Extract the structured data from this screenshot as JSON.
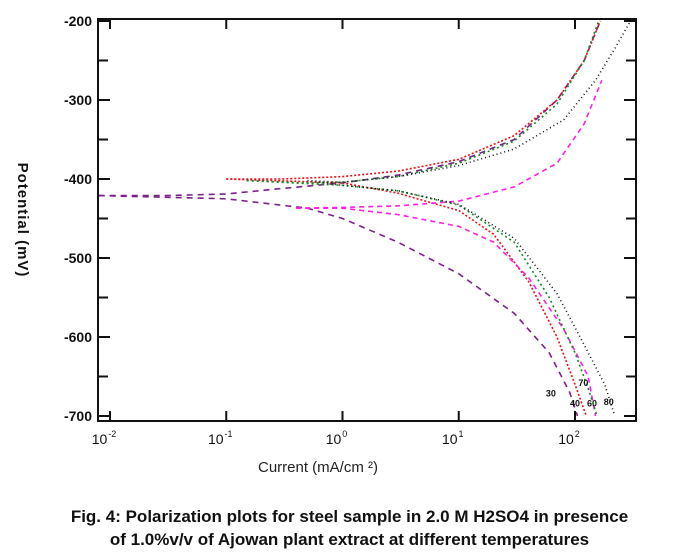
{
  "chart_data": {
    "type": "line",
    "title": "",
    "xlabel": "Current (mA/cm ²)",
    "ylabel": "Potential (mV)",
    "xscale": "log",
    "xlim": [
      0.008,
      300
    ],
    "ylim": [
      -700,
      -200
    ],
    "x_ticks": [
      {
        "base": "10",
        "exp": "-2",
        "value": 0.01
      },
      {
        "base": "10",
        "exp": "-1",
        "value": 0.1
      },
      {
        "base": "10",
        "exp": "0",
        "value": 1
      },
      {
        "base": "10",
        "exp": "1",
        "value": 10
      },
      {
        "base": "10",
        "exp": "2",
        "value": 100
      }
    ],
    "y_ticks": [
      -200,
      -300,
      -400,
      -500,
      -600,
      -700
    ],
    "y_minor_ticks": [
      -250,
      -350,
      -450,
      -550,
      -650
    ],
    "grid": false,
    "legend": "none",
    "series": [
      {
        "name": "30",
        "color": "#7b1f8c",
        "anodic": [
          [
            0.008,
            -421
          ],
          [
            0.03,
            -421
          ],
          [
            0.1,
            -419
          ],
          [
            0.3,
            -412
          ],
          [
            1,
            -405
          ],
          [
            3,
            -395
          ],
          [
            10,
            -378
          ],
          [
            30,
            -350
          ],
          [
            70,
            -300
          ],
          [
            120,
            -250
          ],
          [
            160,
            -205
          ]
        ],
        "cathodic": [
          [
            0.008,
            -421
          ],
          [
            0.1,
            -425
          ],
          [
            0.5,
            -437
          ],
          [
            1,
            -450
          ],
          [
            3,
            -480
          ],
          [
            10,
            -520
          ],
          [
            30,
            -570
          ],
          [
            60,
            -620
          ],
          [
            90,
            -670
          ],
          [
            105,
            -700
          ]
        ],
        "label_at": [
          62,
          -675
        ]
      },
      {
        "name": "40",
        "color": "#e8101a",
        "anodic": [
          [
            0.1,
            -400
          ],
          [
            0.3,
            -400
          ],
          [
            1,
            -397
          ],
          [
            3,
            -390
          ],
          [
            10,
            -375
          ],
          [
            30,
            -345
          ],
          [
            70,
            -300
          ],
          [
            120,
            -250
          ],
          [
            165,
            -200
          ]
        ],
        "cathodic": [
          [
            0.1,
            -400
          ],
          [
            1,
            -405
          ],
          [
            3,
            -418
          ],
          [
            10,
            -440
          ],
          [
            20,
            -470
          ],
          [
            40,
            -530
          ],
          [
            70,
            -600
          ],
          [
            100,
            -660
          ],
          [
            125,
            -700
          ]
        ],
        "label_at": [
          100,
          -688
        ]
      },
      {
        "name": "60",
        "color": "#ff1ee6",
        "anodic": [
          [
            0.4,
            -437
          ],
          [
            1,
            -436
          ],
          [
            3,
            -434
          ],
          [
            10,
            -428
          ],
          [
            30,
            -410
          ],
          [
            70,
            -380
          ],
          [
            120,
            -330
          ],
          [
            170,
            -275
          ]
        ],
        "cathodic": [
          [
            0.4,
            -437
          ],
          [
            1,
            -437
          ],
          [
            3,
            -445
          ],
          [
            10,
            -460
          ],
          [
            20,
            -480
          ],
          [
            40,
            -525
          ],
          [
            80,
            -590
          ],
          [
            130,
            -650
          ],
          [
            150,
            -700
          ]
        ],
        "label_at": [
          140,
          -688
        ]
      },
      {
        "name": "70",
        "color": "#138a1e",
        "anodic": [
          [
            0.15,
            -402
          ],
          [
            0.5,
            -405
          ],
          [
            1,
            -404
          ],
          [
            3,
            -397
          ],
          [
            10,
            -380
          ],
          [
            30,
            -352
          ],
          [
            70,
            -305
          ],
          [
            120,
            -250
          ],
          [
            160,
            -200
          ]
        ],
        "cathodic": [
          [
            0.15,
            -402
          ],
          [
            1,
            -408
          ],
          [
            3,
            -415
          ],
          [
            10,
            -433
          ],
          [
            30,
            -480
          ],
          [
            60,
            -550
          ],
          [
            100,
            -620
          ],
          [
            130,
            -665
          ],
          [
            155,
            -700
          ]
        ],
        "label_at": [
          118,
          -662
        ]
      },
      {
        "name": "80",
        "color": "#111111",
        "anodic": [
          [
            0.5,
            -402
          ],
          [
            1,
            -404
          ],
          [
            3,
            -397
          ],
          [
            10,
            -383
          ],
          [
            30,
            -362
          ],
          [
            80,
            -325
          ],
          [
            150,
            -275
          ],
          [
            220,
            -235
          ],
          [
            300,
            -200
          ]
        ],
        "cathodic": [
          [
            0.5,
            -402
          ],
          [
            1,
            -408
          ],
          [
            3,
            -415
          ],
          [
            10,
            -432
          ],
          [
            30,
            -475
          ],
          [
            70,
            -545
          ],
          [
            120,
            -610
          ],
          [
            180,
            -660
          ],
          [
            220,
            -700
          ]
        ],
        "label_at": [
          195,
          -686
        ]
      }
    ]
  },
  "caption": {
    "line1": "Fig. 4: Polarization plots for steel sample in 2.0 M H2SO4  in presence",
    "line2": "of 1.0%v/v of Ajowan plant extract at different temperatures"
  }
}
